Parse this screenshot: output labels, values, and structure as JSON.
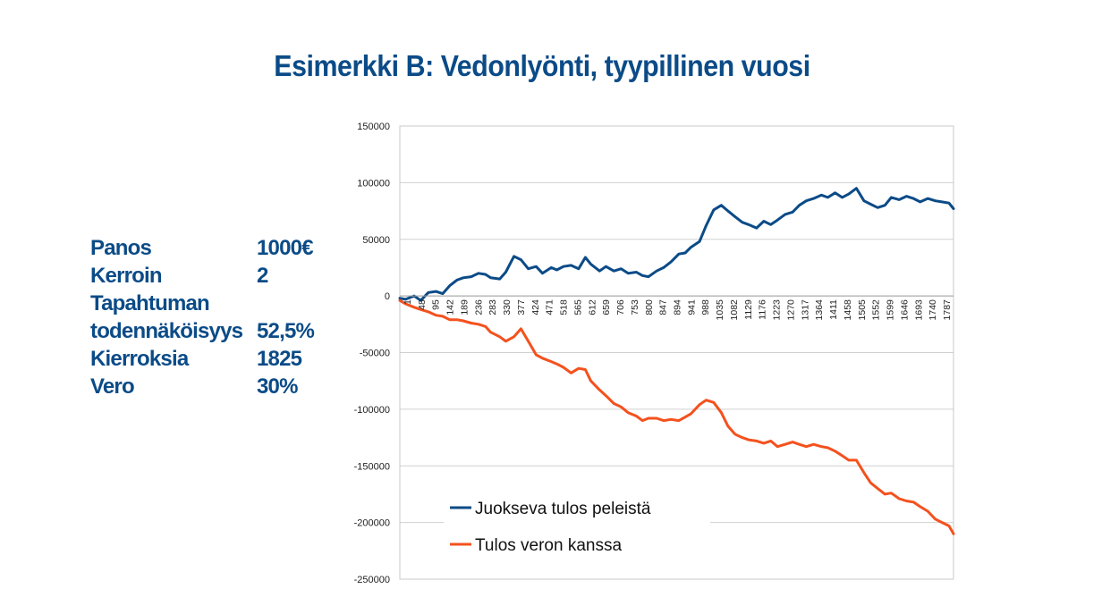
{
  "title": "Esimerkki B:  Vedonlyönti, tyypillinen vuosi",
  "params": [
    {
      "label": "Panos",
      "value": "1000€"
    },
    {
      "label": "Kerroin",
      "value": "2"
    },
    {
      "label": "Tapahtuman todennäköisyys",
      "label_line1": "Tapahtuman",
      "label_line2": "todennäköisyys",
      "value": "52,5%"
    },
    {
      "label": "Kierroksia",
      "value": "1825"
    },
    {
      "label": "Vero",
      "value": "30%"
    }
  ],
  "chart_data": {
    "type": "line",
    "title": "",
    "xlabel": "",
    "ylabel": "",
    "ylim": [
      -250000,
      150000
    ],
    "yticks": [
      150000,
      100000,
      50000,
      0,
      -50000,
      -100000,
      -150000,
      -200000,
      -250000
    ],
    "ytick_labels": [
      "150000",
      "100000",
      "50000",
      "0",
      "-50000",
      "-100000",
      "-150000",
      "-200000",
      "-250000"
    ],
    "xlim": [
      1,
      1825
    ],
    "xtick_labels": [
      "1",
      "48",
      "95",
      "142",
      "189",
      "236",
      "283",
      "330",
      "377",
      "424",
      "471",
      "518",
      "565",
      "612",
      "659",
      "706",
      "753",
      "800",
      "847",
      "894",
      "941",
      "988",
      "1035",
      "1082",
      "1129",
      "1176",
      "1223",
      "1270",
      "1317",
      "1364",
      "1411",
      "1458",
      "1505",
      "1552",
      "1599",
      "1646",
      "1693",
      "1740",
      "1787"
    ],
    "grid": "horizontal",
    "legend_position": "bottom-center",
    "series": [
      {
        "name": "Juokseva tulos peleistä",
        "color": "#0b4b87",
        "x": [
          1,
          20,
          48,
          70,
          95,
          120,
          142,
          165,
          189,
          210,
          236,
          260,
          283,
          300,
          330,
          350,
          377,
          400,
          424,
          450,
          471,
          500,
          518,
          540,
          565,
          590,
          612,
          630,
          659,
          680,
          706,
          730,
          753,
          780,
          800,
          820,
          847,
          870,
          894,
          920,
          941,
          960,
          988,
          1010,
          1035,
          1060,
          1082,
          1105,
          1129,
          1150,
          1176,
          1200,
          1223,
          1245,
          1270,
          1295,
          1317,
          1340,
          1364,
          1390,
          1411,
          1435,
          1458,
          1480,
          1505,
          1530,
          1552,
          1575,
          1599,
          1620,
          1646,
          1670,
          1693,
          1715,
          1740,
          1765,
          1787,
          1810,
          1825
        ],
        "y": [
          -2000,
          -3000,
          0,
          -4000,
          3000,
          4000,
          2000,
          9000,
          14000,
          16000,
          17000,
          20000,
          19000,
          16000,
          15000,
          21000,
          35000,
          32000,
          24000,
          26000,
          20000,
          25000,
          23000,
          26000,
          27000,
          24000,
          34000,
          28000,
          22000,
          26000,
          22000,
          24000,
          20000,
          21000,
          18000,
          17000,
          22000,
          25000,
          30000,
          37000,
          38000,
          43000,
          48000,
          62000,
          76000,
          80000,
          75000,
          70000,
          65000,
          63000,
          60000,
          66000,
          63000,
          67000,
          72000,
          74000,
          80000,
          84000,
          86000,
          89000,
          87000,
          91000,
          87000,
          90000,
          95000,
          84000,
          81000,
          78000,
          80000,
          87000,
          85000,
          88000,
          86000,
          83000,
          86000,
          84000,
          83000,
          82000,
          77000
        ]
      },
      {
        "name": "Tulos veron kanssa",
        "color": "#f4511e",
        "x": [
          1,
          20,
          48,
          70,
          95,
          120,
          142,
          165,
          189,
          210,
          236,
          260,
          283,
          300,
          330,
          350,
          377,
          400,
          424,
          450,
          471,
          500,
          518,
          540,
          565,
          590,
          612,
          630,
          659,
          680,
          706,
          730,
          753,
          780,
          800,
          820,
          847,
          870,
          894,
          920,
          941,
          960,
          988,
          1010,
          1035,
          1060,
          1082,
          1105,
          1129,
          1150,
          1176,
          1200,
          1223,
          1245,
          1270,
          1295,
          1317,
          1340,
          1364,
          1390,
          1411,
          1435,
          1458,
          1480,
          1505,
          1530,
          1552,
          1575,
          1599,
          1620,
          1646,
          1670,
          1693,
          1715,
          1740,
          1765,
          1787,
          1810,
          1825
        ],
        "y": [
          -4000,
          -7000,
          -10000,
          -12000,
          -14000,
          -17000,
          -18000,
          -21000,
          -21000,
          -22000,
          -24000,
          -25000,
          -27000,
          -32000,
          -36000,
          -40000,
          -36000,
          -29000,
          -40000,
          -52000,
          -55000,
          -58000,
          -60000,
          -63000,
          -68000,
          -64000,
          -65000,
          -75000,
          -83000,
          -88000,
          -95000,
          -98000,
          -103000,
          -106000,
          -110000,
          -108000,
          -108000,
          -110000,
          -109000,
          -110000,
          -107000,
          -104000,
          -96000,
          -92000,
          -94000,
          -103000,
          -115000,
          -122000,
          -125000,
          -127000,
          -128000,
          -130000,
          -128000,
          -133000,
          -131000,
          -129000,
          -131000,
          -133000,
          -131000,
          -133000,
          -134000,
          -137000,
          -141000,
          -145000,
          -145000,
          -156000,
          -165000,
          -170000,
          -175000,
          -174000,
          -179000,
          -181000,
          -182000,
          -186000,
          -190000,
          -197000,
          -200000,
          -203000,
          -210000
        ]
      }
    ]
  }
}
